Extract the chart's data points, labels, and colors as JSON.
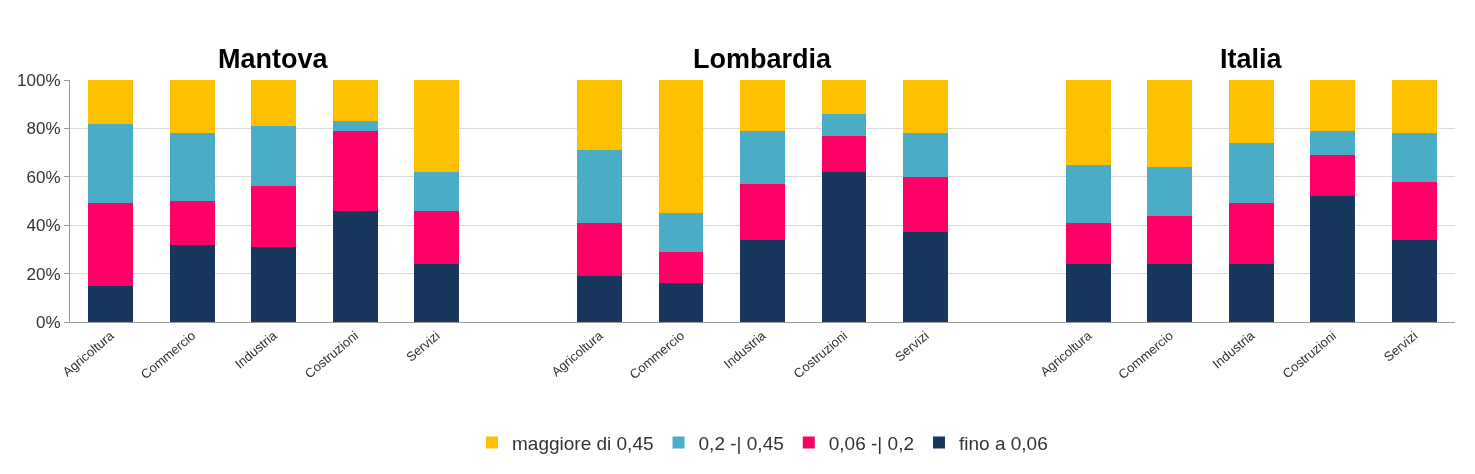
{
  "chart_data": {
    "type": "bar",
    "stacked": true,
    "annotations": [
      "Mantova",
      "Lombardia",
      "Italia"
    ],
    "categories": [
      "Agricoltura",
      "Commercio",
      "Industria",
      "Costruzioni",
      "Servizi",
      null,
      "Agricoltura",
      "Commercio",
      "Industria",
      "Costruzioni",
      "Servizi",
      null,
      "Agricoltura",
      "Commercio",
      "Industria",
      "Costruzioni",
      "Servizi"
    ],
    "series": [
      {
        "name": "fino a 0,06",
        "color": "#17375e",
        "values": [
          15,
          32,
          31,
          46,
          24,
          null,
          19,
          16,
          34,
          62,
          37,
          null,
          24,
          24,
          24,
          52,
          34
        ]
      },
      {
        "name": "0,06 -| 0,2",
        "color": "#ff0066",
        "values": [
          34,
          18,
          25,
          33,
          22,
          null,
          22,
          13,
          23,
          15,
          23,
          null,
          17,
          20,
          25,
          17,
          24
        ]
      },
      {
        "name": "0,2 -| 0,45",
        "color": "#4bacc6",
        "values": [
          33,
          28,
          25,
          4,
          16,
          null,
          30,
          16,
          22,
          9,
          18,
          null,
          24,
          20,
          25,
          10,
          20
        ]
      },
      {
        "name": "maggiore di 0,45",
        "color": "#ffc000",
        "values": [
          18,
          22,
          19,
          17,
          38,
          null,
          29,
          55,
          21,
          14,
          22,
          null,
          35,
          36,
          26,
          21,
          22
        ]
      }
    ],
    "ylim": [
      0,
      100
    ],
    "yticks": [
      {
        "value": 0,
        "label": "0%"
      },
      {
        "value": 20,
        "label": "20%"
      },
      {
        "value": 40,
        "label": "40%"
      },
      {
        "value": 60,
        "label": "60%"
      },
      {
        "value": 80,
        "label": "80%"
      },
      {
        "value": 100,
        "label": "100%"
      }
    ],
    "grid": "y",
    "legend": "bottom"
  }
}
